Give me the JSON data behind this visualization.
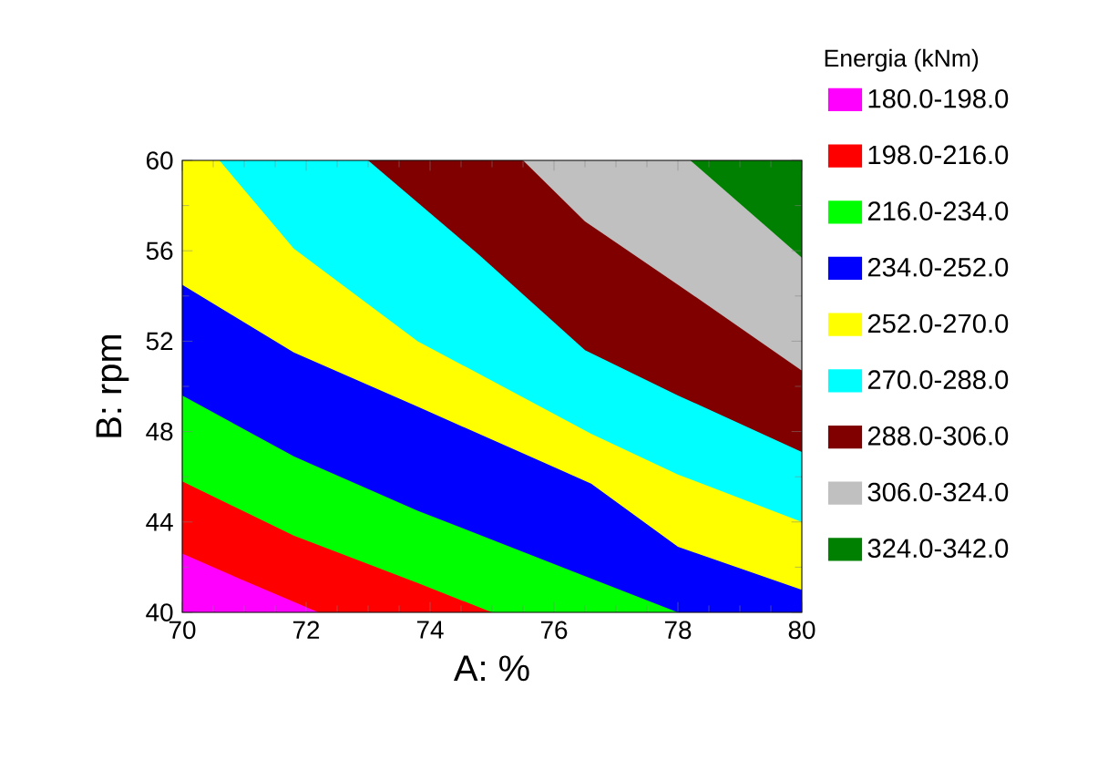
{
  "chart_data": {
    "type": "area",
    "xlabel": "A: %",
    "ylabel": "B: rpm",
    "legend_title": "Energia (kNm)",
    "legend": "right",
    "xlim": [
      70,
      80
    ],
    "ylim": [
      40,
      60
    ],
    "xticks": [
      70,
      72,
      74,
      76,
      78,
      80
    ],
    "yticks": [
      40,
      44,
      48,
      52,
      56,
      60
    ],
    "series": [
      {
        "name": "180.0-198.0",
        "color": "#ff00ff",
        "x": [
          70,
          71.0,
          72.2,
          80
        ],
        "values": [
          42.6,
          41.4,
          40,
          40
        ]
      },
      {
        "name": "198.0-216.0",
        "color": "#ff0000",
        "x": [
          70,
          71.8,
          73.8,
          75.0,
          80
        ],
        "values": [
          45.8,
          43.4,
          41.3,
          40,
          40
        ]
      },
      {
        "name": "216.0-234.0",
        "color": "#00ff00",
        "x": [
          70,
          71.8,
          73.8,
          76.5,
          78.0,
          80
        ],
        "values": [
          49.6,
          46.9,
          44.5,
          41.6,
          40,
          40
        ]
      },
      {
        "name": "234.0-252.0",
        "color": "#0000ff",
        "x": [
          70,
          71.8,
          73.8,
          76.6,
          78.0,
          80
        ],
        "values": [
          54.5,
          51.5,
          49.1,
          45.7,
          42.9,
          41.0
        ]
      },
      {
        "name": "252.0-270.0",
        "color": "#ffff00",
        "x": [
          70,
          70.6,
          71.8,
          73.8,
          76.6,
          78.0,
          80
        ],
        "values": [
          60,
          60,
          56.1,
          52.0,
          47.9,
          46.1,
          44.0
        ]
      },
      {
        "name": "270.0-288.0",
        "color": "#00ffff",
        "x": [
          70.6,
          73.0,
          74.8,
          76.5,
          78.0,
          80
        ],
        "values": [
          60,
          60,
          55.8,
          51.6,
          49.6,
          47.1
        ]
      },
      {
        "name": "288.0-306.0",
        "color": "#800000",
        "x": [
          73.0,
          75.5,
          76.5,
          78.0,
          80
        ],
        "values": [
          60,
          60,
          57.3,
          54.5,
          50.7
        ]
      },
      {
        "name": "306.0-324.0",
        "color": "#c0c0c0",
        "x": [
          75.5,
          78.2,
          80
        ],
        "values": [
          60,
          60,
          55.7
        ]
      },
      {
        "name": "324.0-342.0",
        "color": "#008000",
        "x": [
          78.2,
          80
        ],
        "values": [
          60,
          60
        ]
      }
    ]
  }
}
